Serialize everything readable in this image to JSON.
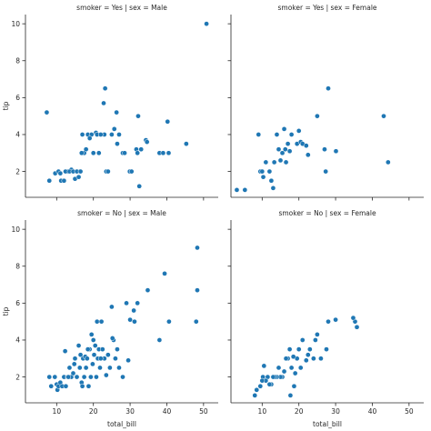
{
  "chart_data": {
    "type": "scatter",
    "x_label": "total_bill",
    "y_label": "tip",
    "xlim": [
      1.5,
      54
    ],
    "ylim": [
      0.6,
      10.5
    ],
    "x_ticks": [
      10,
      20,
      30,
      40,
      50
    ],
    "y_ticks": [
      2,
      4,
      6,
      8,
      10
    ],
    "grid": false,
    "marker_color": "#1f77b4",
    "panels": [
      {
        "title": "smoker = Yes | sex = Male",
        "points": [
          [
            50.8,
            10.0
          ],
          [
            7.3,
            5.2
          ],
          [
            23.2,
            6.5
          ],
          [
            22.8,
            5.7
          ],
          [
            26.3,
            5.2
          ],
          [
            32.2,
            5.0
          ],
          [
            40.2,
            4.7
          ],
          [
            13.0,
            2.0
          ],
          [
            14.0,
            2.1
          ],
          [
            15.0,
            1.6
          ],
          [
            16.3,
            2.0
          ],
          [
            17.0,
            4.0
          ],
          [
            18.5,
            4.0
          ],
          [
            19.5,
            4.0
          ],
          [
            20.7,
            4.1
          ],
          [
            21.0,
            4.0
          ],
          [
            23.0,
            4.0
          ],
          [
            25.7,
            4.3
          ],
          [
            27.0,
            4.0
          ],
          [
            28.0,
            3.0
          ],
          [
            29.9,
            2.0
          ],
          [
            30.4,
            2.0
          ],
          [
            31.7,
            3.2
          ],
          [
            32.0,
            3.0
          ],
          [
            34.3,
            3.7
          ],
          [
            34.6,
            3.6
          ],
          [
            38.0,
            3.0
          ],
          [
            39.0,
            3.0
          ],
          [
            40.5,
            3.0
          ],
          [
            45.3,
            3.5
          ],
          [
            8.0,
            1.5
          ],
          [
            9.6,
            1.9
          ],
          [
            10.5,
            2.0
          ],
          [
            11.0,
            1.9
          ],
          [
            11.2,
            1.5
          ],
          [
            12.0,
            1.5
          ],
          [
            12.4,
            2.0
          ],
          [
            13.5,
            2.0
          ],
          [
            14.5,
            2.0
          ],
          [
            15.5,
            2.0
          ],
          [
            16.0,
            1.7
          ],
          [
            16.5,
            2.0
          ],
          [
            17.5,
            3.0
          ],
          [
            19.0,
            3.8
          ],
          [
            20.0,
            3.0
          ],
          [
            21.5,
            3.0
          ],
          [
            23.5,
            2.0
          ],
          [
            24.0,
            2.0
          ],
          [
            25.0,
            4.0
          ],
          [
            26.5,
            3.5
          ],
          [
            28.5,
            3.0
          ],
          [
            32.5,
            1.2
          ],
          [
            33.0,
            3.2
          ],
          [
            22.0,
            4.0
          ],
          [
            18.0,
            3.2
          ],
          [
            16.8,
            3.0
          ]
        ]
      },
      {
        "title": "smoker = Yes | sex = Female",
        "points": [
          [
            3.1,
            1.0
          ],
          [
            5.3,
            1.0
          ],
          [
            9.0,
            4.0
          ],
          [
            9.5,
            2.0
          ],
          [
            10.0,
            2.0
          ],
          [
            10.3,
            1.7
          ],
          [
            11.0,
            2.5
          ],
          [
            12.0,
            2.0
          ],
          [
            12.5,
            1.5
          ],
          [
            13.0,
            1.1
          ],
          [
            13.3,
            2.5
          ],
          [
            14.0,
            4.0
          ],
          [
            14.5,
            3.2
          ],
          [
            15.0,
            2.6
          ],
          [
            15.5,
            3.0
          ],
          [
            16.0,
            4.3
          ],
          [
            16.3,
            3.2
          ],
          [
            16.5,
            2.5
          ],
          [
            17.0,
            3.5
          ],
          [
            17.5,
            3.1
          ],
          [
            18.0,
            4.0
          ],
          [
            19.5,
            3.5
          ],
          [
            20.0,
            4.2
          ],
          [
            20.5,
            3.6
          ],
          [
            21.0,
            3.5
          ],
          [
            22.0,
            3.4
          ],
          [
            22.5,
            2.9
          ],
          [
            25.0,
            5.0
          ],
          [
            27.0,
            3.2
          ],
          [
            27.3,
            2.0
          ],
          [
            28.0,
            6.5
          ],
          [
            30.1,
            3.1
          ],
          [
            43.1,
            5.0
          ],
          [
            44.3,
            2.5
          ]
        ]
      },
      {
        "title": "smoker = No | sex = Male",
        "points": [
          [
            48.3,
            9.0
          ],
          [
            39.4,
            7.6
          ],
          [
            48.3,
            6.7
          ],
          [
            34.8,
            6.7
          ],
          [
            32.0,
            6.0
          ],
          [
            29.0,
            6.0
          ],
          [
            31.0,
            5.6
          ],
          [
            30.0,
            5.1
          ],
          [
            31.2,
            5.0
          ],
          [
            40.6,
            5.0
          ],
          [
            48.0,
            5.0
          ],
          [
            38.0,
            4.0
          ],
          [
            25.0,
            5.8
          ],
          [
            21.0,
            5.0
          ],
          [
            22.2,
            5.0
          ],
          [
            19.5,
            4.3
          ],
          [
            20.0,
            4.0
          ],
          [
            20.5,
            3.7
          ],
          [
            21.5,
            3.5
          ],
          [
            22.5,
            3.5
          ],
          [
            23.0,
            3.0
          ],
          [
            24.0,
            3.2
          ],
          [
            25.5,
            4.0
          ],
          [
            26.0,
            3.0
          ],
          [
            27.0,
            2.5
          ],
          [
            28.0,
            2.0
          ],
          [
            29.5,
            2.9
          ],
          [
            8.0,
            2.0
          ],
          [
            8.5,
            1.5
          ],
          [
            9.5,
            2.0
          ],
          [
            10.0,
            1.6
          ],
          [
            10.2,
            1.3
          ],
          [
            10.5,
            1.5
          ],
          [
            11.0,
            1.7
          ],
          [
            11.5,
            1.5
          ],
          [
            12.0,
            2.0
          ],
          [
            12.3,
            3.4
          ],
          [
            13.0,
            2.0
          ],
          [
            13.5,
            2.5
          ],
          [
            14.0,
            2.0
          ],
          [
            14.5,
            2.2
          ],
          [
            15.0,
            3.0
          ],
          [
            15.5,
            2.0
          ],
          [
            16.0,
            3.7
          ],
          [
            16.3,
            2.5
          ],
          [
            16.8,
            1.7
          ],
          [
            17.2,
            3.0
          ],
          [
            17.5,
            2.0
          ],
          [
            17.8,
            3.1
          ],
          [
            18.0,
            2.5
          ],
          [
            18.3,
            3.0
          ],
          [
            18.7,
            1.5
          ],
          [
            19.0,
            3.5
          ],
          [
            19.3,
            2.0
          ],
          [
            19.8,
            2.7
          ],
          [
            20.2,
            3.2
          ],
          [
            20.8,
            2.0
          ],
          [
            21.2,
            3.0
          ],
          [
            21.8,
            2.5
          ],
          [
            22.0,
            3.0
          ],
          [
            23.5,
            2.1
          ],
          [
            24.5,
            2.5
          ],
          [
            25.2,
            4.1
          ],
          [
            26.5,
            3.5
          ],
          [
            16.5,
            3.2
          ],
          [
            14.8,
            2.7
          ],
          [
            13.2,
            2.0
          ],
          [
            12.5,
            1.5
          ],
          [
            17.0,
            1.5
          ],
          [
            18.5,
            3.5
          ]
        ]
      },
      {
        "title": "smoker = No | sex = Female",
        "points": [
          [
            35.8,
            4.7
          ],
          [
            35.3,
            5.0
          ],
          [
            34.8,
            5.2
          ],
          [
            30.0,
            5.1
          ],
          [
            28.0,
            5.0
          ],
          [
            25.0,
            4.3
          ],
          [
            24.5,
            4.0
          ],
          [
            23.0,
            3.5
          ],
          [
            22.5,
            3.2
          ],
          [
            21.0,
            4.0
          ],
          [
            20.0,
            3.5
          ],
          [
            19.5,
            3.0
          ],
          [
            18.5,
            3.1
          ],
          [
            18.0,
            2.5
          ],
          [
            17.5,
            3.5
          ],
          [
            17.0,
            3.0
          ],
          [
            16.5,
            3.0
          ],
          [
            16.0,
            2.3
          ],
          [
            15.5,
            2.0
          ],
          [
            15.0,
            2.0
          ],
          [
            14.5,
            2.5
          ],
          [
            14.0,
            2.0
          ],
          [
            13.5,
            2.0
          ],
          [
            13.0,
            2.0
          ],
          [
            12.5,
            1.6
          ],
          [
            12.0,
            1.6
          ],
          [
            11.5,
            2.0
          ],
          [
            11.0,
            1.8
          ],
          [
            10.5,
            2.6
          ],
          [
            10.2,
            2.0
          ],
          [
            10.0,
            1.8
          ],
          [
            9.5,
            1.5
          ],
          [
            8.5,
            1.3
          ],
          [
            8.0,
            1.0
          ],
          [
            18.7,
            1.5
          ],
          [
            17.7,
            1.0
          ],
          [
            20.5,
            2.5
          ],
          [
            22.0,
            2.9
          ],
          [
            26.0,
            3.0
          ],
          [
            27.5,
            3.5
          ],
          [
            24.0,
            3.0
          ],
          [
            19.0,
            2.2
          ]
        ]
      }
    ]
  }
}
